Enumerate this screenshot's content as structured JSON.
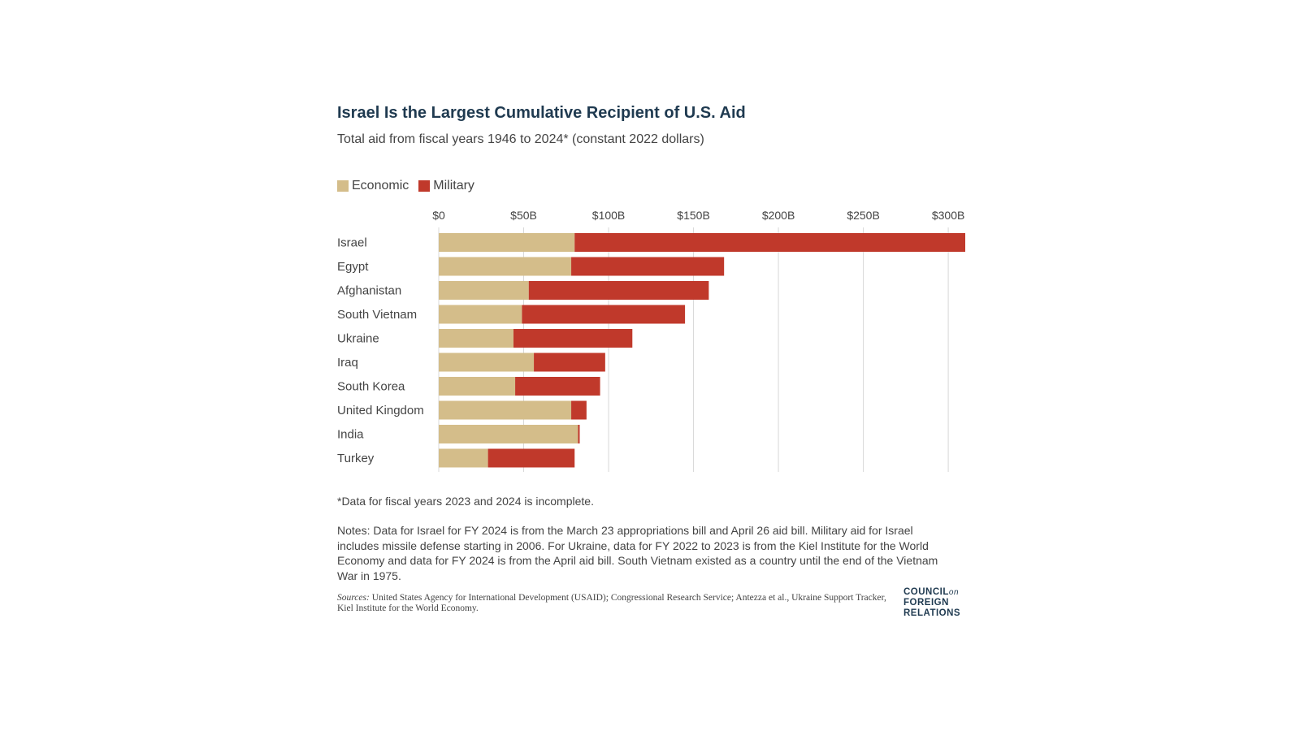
{
  "chart_data": {
    "type": "bar",
    "orientation": "horizontal",
    "stacked": true,
    "title": "Israel Is the Largest Cumulative Recipient of U.S. Aid",
    "subtitle": "Total aid from fiscal years 1946 to 2024* (constant 2022 dollars)",
    "categories": [
      "Israel",
      "Egypt",
      "Afghanistan",
      "South Vietnam",
      "Ukraine",
      "Iraq",
      "South Korea",
      "United Kingdom",
      "India",
      "Turkey"
    ],
    "series": [
      {
        "name": "Economic",
        "color": "#d4bd8a",
        "values": [
          80,
          78,
          53,
          49,
          44,
          56,
          45,
          78,
          82,
          29
        ]
      },
      {
        "name": "Military",
        "color": "#c0392b",
        "values": [
          230,
          90,
          106,
          96,
          70,
          42,
          50,
          9,
          1,
          51
        ]
      }
    ],
    "xlim": [
      0,
      310
    ],
    "x_ticks": [
      0,
      50,
      100,
      150,
      200,
      250,
      300
    ],
    "x_tick_labels": [
      "$0",
      "$50B",
      "$100B",
      "$150B",
      "$200B",
      "$250B",
      "$300B"
    ],
    "grid": true,
    "legend_position": "top-left"
  },
  "footnote": "*Data for fiscal years 2023 and 2024 is incomplete.",
  "notes": "Notes: Data for Israel for FY 2024 is from the March 23 appropriations bill and April 26 aid bill. Military aid for Israel includes missile defense starting in 2006. For Ukraine, data for FY 2022 to 2023 is from the Kiel Institute for the World Economy and data for FY 2024 is from the April aid bill. South Vietnam existed as a country until the end of the Vietnam War in 1975.",
  "sources_lead": "Sources:",
  "sources_text": "United States Agency for International Development (USAID); Congressional Research Service; Antezza et al., Ukraine Support Tracker, Kiel Institute for the World Economy.",
  "logo": {
    "line1": "COUNCIL",
    "line1_small": "on",
    "line2": "FOREIGN",
    "line3": "RELATIONS"
  }
}
